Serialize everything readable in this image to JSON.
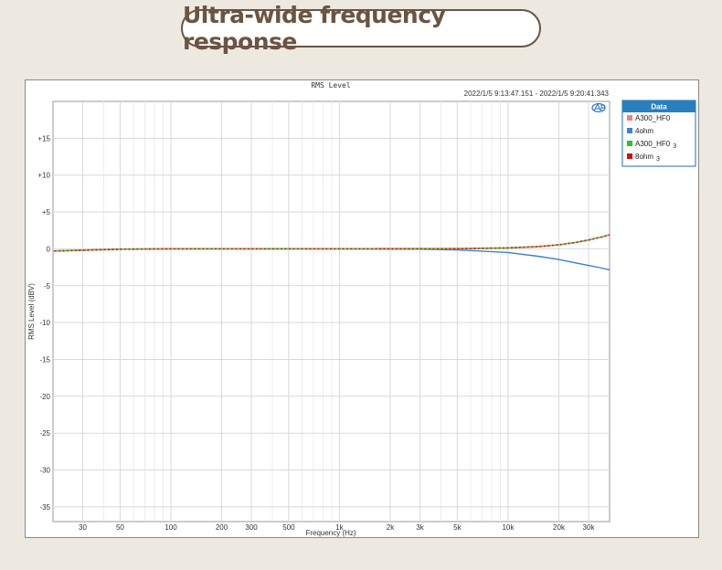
{
  "banner": {
    "title": "Ultra-wide frequency response"
  },
  "chart_data": {
    "type": "line",
    "title": "RMS Level",
    "time_range": "2022/1/5 9:13:47.151 -   2022/1/5 9:20:41.343",
    "xlabel": "Frequency (Hz)",
    "ylabel": "RMS Level (dBV)",
    "xscale": "log",
    "xlim": [
      20,
      40000
    ],
    "ylim": [
      -37,
      20
    ],
    "x_ticks": [
      {
        "v": 30,
        "label": "30"
      },
      {
        "v": 50,
        "label": "50"
      },
      {
        "v": 100,
        "label": "100"
      },
      {
        "v": 200,
        "label": "200"
      },
      {
        "v": 300,
        "label": "300"
      },
      {
        "v": 500,
        "label": "500"
      },
      {
        "v": 1000,
        "label": "1k"
      },
      {
        "v": 2000,
        "label": "2k"
      },
      {
        "v": 3000,
        "label": "3k"
      },
      {
        "v": 5000,
        "label": "5k"
      },
      {
        "v": 10000,
        "label": "10k"
      },
      {
        "v": 20000,
        "label": "20k"
      },
      {
        "v": 30000,
        "label": "30k"
      }
    ],
    "y_ticks": [
      {
        "v": 15,
        "label": "+15"
      },
      {
        "v": 10,
        "label": "+10"
      },
      {
        "v": 5,
        "label": "+5"
      },
      {
        "v": 0,
        "label": "0"
      },
      {
        "v": -5,
        "label": "-5"
      },
      {
        "v": -10,
        "label": "-10"
      },
      {
        "v": -15,
        "label": "-15"
      },
      {
        "v": -20,
        "label": "-20"
      },
      {
        "v": -25,
        "label": "-25"
      },
      {
        "v": -30,
        "label": "-30"
      },
      {
        "v": -35,
        "label": "-35"
      }
    ],
    "grid": true,
    "legend": {
      "title": "Data",
      "placement": "right"
    },
    "series": [
      {
        "name": "A300_HF0",
        "sub": "",
        "color": "#f08080",
        "style": "dotted",
        "points": [
          [
            20,
            -0.3
          ],
          [
            50,
            -0.05
          ],
          [
            100,
            0
          ],
          [
            1000,
            0
          ],
          [
            5000,
            0.02
          ],
          [
            10000,
            0.12
          ],
          [
            15000,
            0.3
          ],
          [
            20000,
            0.55
          ],
          [
            25000,
            0.85
          ],
          [
            30000,
            1.2
          ],
          [
            35000,
            1.55
          ],
          [
            40000,
            1.9
          ]
        ]
      },
      {
        "name": "4ohm",
        "sub": "",
        "color": "#3a7fd8",
        "style": "solid",
        "points": [
          [
            20,
            -0.3
          ],
          [
            50,
            -0.05
          ],
          [
            100,
            0
          ],
          [
            1000,
            0
          ],
          [
            3000,
            -0.05
          ],
          [
            5000,
            -0.15
          ],
          [
            10000,
            -0.5
          ],
          [
            15000,
            -1.0
          ],
          [
            20000,
            -1.45
          ],
          [
            25000,
            -1.9
          ],
          [
            30000,
            -2.25
          ],
          [
            35000,
            -2.55
          ],
          [
            40000,
            -2.85
          ]
        ]
      },
      {
        "name": "A300_HF0",
        "sub": "3",
        "color": "#22cc22",
        "style": "dotted",
        "points": [
          [
            20,
            -0.3
          ],
          [
            50,
            -0.05
          ],
          [
            100,
            0
          ],
          [
            1000,
            0
          ],
          [
            5000,
            0.02
          ],
          [
            10000,
            0.12
          ],
          [
            15000,
            0.3
          ],
          [
            20000,
            0.55
          ],
          [
            25000,
            0.85
          ],
          [
            30000,
            1.2
          ],
          [
            35000,
            1.55
          ],
          [
            40000,
            1.9
          ]
        ]
      },
      {
        "name": "8ohm",
        "sub": "3",
        "color": "#cc1111",
        "style": "dotted",
        "points": [
          [
            20,
            -0.3
          ],
          [
            50,
            -0.05
          ],
          [
            100,
            0
          ],
          [
            1000,
            0
          ],
          [
            5000,
            0.02
          ],
          [
            10000,
            0.12
          ],
          [
            15000,
            0.3
          ],
          [
            20000,
            0.55
          ],
          [
            25000,
            0.85
          ],
          [
            30000,
            1.2
          ],
          [
            35000,
            1.55
          ],
          [
            40000,
            1.9
          ]
        ]
      }
    ]
  }
}
